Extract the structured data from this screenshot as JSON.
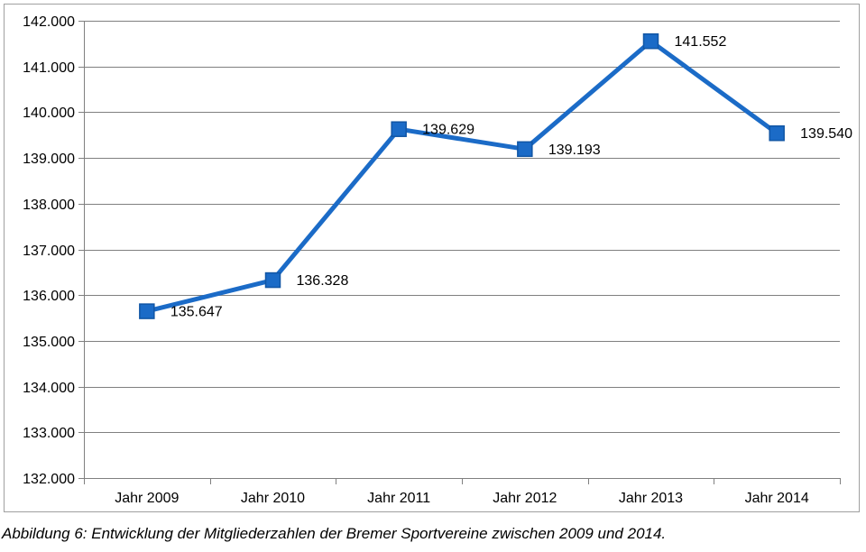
{
  "page": {
    "background_color": "#ffffff",
    "frame_border_color": "#a0a0a0"
  },
  "chart_data": {
    "type": "line",
    "title": "",
    "xlabel": "",
    "ylabel": "",
    "categories": [
      "Jahr 2009",
      "Jahr 2010",
      "Jahr 2011",
      "Jahr 2012",
      "Jahr 2013",
      "Jahr 2014"
    ],
    "values": [
      135647,
      136328,
      139629,
      139193,
      141552,
      139540
    ],
    "value_labels": [
      "135.647",
      "136.328",
      "139.629",
      "139.193",
      "141.552",
      "139.540"
    ],
    "ylim": [
      132000,
      142000
    ],
    "ytick_step": 1000,
    "ytick_labels": [
      "132.000",
      "133.000",
      "134.000",
      "135.000",
      "136.000",
      "137.000",
      "138.000",
      "139.000",
      "140.000",
      "141.000",
      "142.000"
    ],
    "grid": true,
    "legend_position": "none",
    "series_color": "#1b6bc7",
    "marker_shape": "square",
    "marker_border_color": "#1156a5",
    "grid_color": "#808080",
    "axis_color": "#808080",
    "tick_label_color": "#000000",
    "data_label_color": "#000000"
  },
  "caption": "Abbildung 6: Entwicklung der Mitgliederzahlen der Bremer Sportvereine zwischen 2009 und 2014."
}
